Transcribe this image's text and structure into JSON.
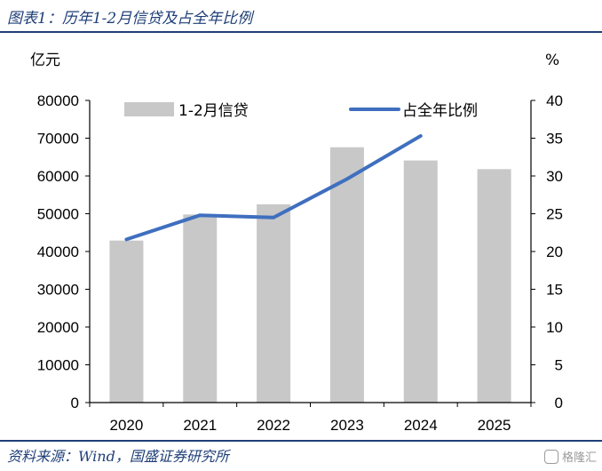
{
  "figure": {
    "title": "图表1：历年1-2月信贷及占全年比例",
    "source": "资料来源：Wind，国盛证券研究所",
    "watermark": "格隆汇"
  },
  "chart_data": {
    "type": "bar",
    "title": "",
    "categories": [
      "2020",
      "2021",
      "2022",
      "2023",
      "2024",
      "2025"
    ],
    "series": [
      {
        "name": "1-2月信贷",
        "type": "bar",
        "axis": "left",
        "color": "#c8c8c8",
        "values": [
          42900,
          49800,
          52500,
          67600,
          64100,
          61800
        ]
      },
      {
        "name": "占全年比例",
        "type": "line",
        "axis": "right",
        "color": "#3f6fbf",
        "values": [
          21.6,
          24.8,
          24.5,
          29.6,
          35.3,
          null
        ]
      }
    ],
    "yleft": {
      "label": "亿元",
      "lim": [
        0,
        80000
      ],
      "ticks": [
        "0",
        "10000",
        "20000",
        "30000",
        "40000",
        "50000",
        "60000",
        "70000",
        "80000"
      ]
    },
    "yright": {
      "label": "%",
      "lim": [
        0,
        40
      ],
      "ticks": [
        "0",
        "5",
        "10",
        "15",
        "20",
        "25",
        "30",
        "35",
        "40"
      ]
    },
    "legend": {
      "placement": "top"
    },
    "grid": false
  }
}
